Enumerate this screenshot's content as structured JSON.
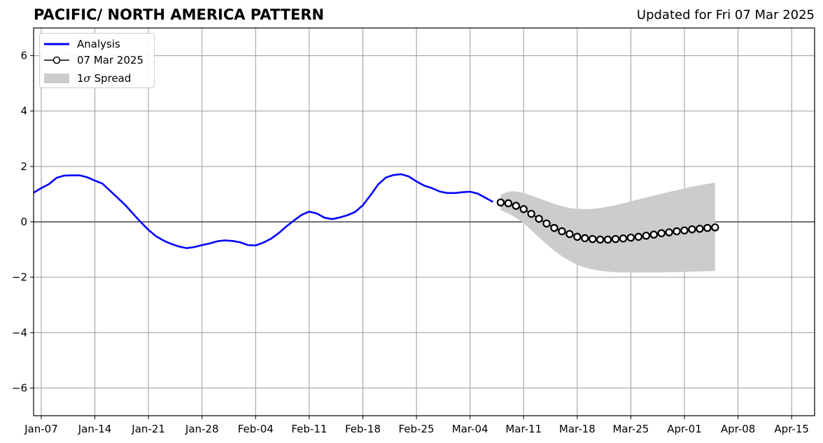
{
  "title": "PACIFIC/ NORTH AMERICA PATTERN",
  "subtitle": "Updated for Fri 07 Mar 2025",
  "colors": {
    "analysis": "#0000ff",
    "forecast": "#000000",
    "spread": "#cccccc",
    "grid": "#999999"
  },
  "legend": {
    "analysis": "Analysis",
    "forecast": "07 Mar 2025",
    "spread_prefix": "1",
    "spread_sigma": "σ",
    "spread_suffix": " Spread"
  },
  "chart_data": {
    "type": "line",
    "title": "PACIFIC/ NORTH AMERICA PATTERN",
    "subtitle": "Updated for Fri 07 Mar 2025",
    "xlabel": "",
    "ylabel": "",
    "xlim": [
      "2025-01-06",
      "2025-04-18"
    ],
    "ylim": [
      -7,
      7
    ],
    "grid": true,
    "legend_position": "top-left",
    "x_ticks": [
      "Jan-07",
      "Jan-14",
      "Jan-21",
      "Jan-28",
      "Feb-04",
      "Feb-11",
      "Feb-18",
      "Feb-25",
      "Mar-04",
      "Mar-11",
      "Mar-18",
      "Mar-25",
      "Apr-01",
      "Apr-08",
      "Apr-15"
    ],
    "x_tick_dates": [
      "2025-01-07",
      "2025-01-14",
      "2025-01-21",
      "2025-01-28",
      "2025-02-04",
      "2025-02-11",
      "2025-02-18",
      "2025-02-25",
      "2025-03-04",
      "2025-03-11",
      "2025-03-18",
      "2025-03-25",
      "2025-04-01",
      "2025-04-08",
      "2025-04-15"
    ],
    "y_ticks": [
      "6",
      "4",
      "2",
      "0",
      "−2",
      "−4",
      "−6"
    ],
    "y_tick_values": [
      6,
      4,
      2,
      0,
      -2,
      -4,
      -6
    ],
    "series": [
      {
        "name": "Analysis",
        "x": [
          "2025-01-06",
          "2025-01-07",
          "2025-01-08",
          "2025-01-09",
          "2025-01-10",
          "2025-01-11",
          "2025-01-12",
          "2025-01-13",
          "2025-01-14",
          "2025-01-15",
          "2025-01-16",
          "2025-01-17",
          "2025-01-18",
          "2025-01-19",
          "2025-01-20",
          "2025-01-21",
          "2025-01-22",
          "2025-01-23",
          "2025-01-24",
          "2025-01-25",
          "2025-01-26",
          "2025-01-27",
          "2025-01-28",
          "2025-01-29",
          "2025-01-30",
          "2025-01-31",
          "2025-02-01",
          "2025-02-02",
          "2025-02-03",
          "2025-02-04",
          "2025-02-05",
          "2025-02-06",
          "2025-02-07",
          "2025-02-08",
          "2025-02-09",
          "2025-02-10",
          "2025-02-11",
          "2025-02-12",
          "2025-02-13",
          "2025-02-14",
          "2025-02-15",
          "2025-02-16",
          "2025-02-17",
          "2025-02-18",
          "2025-02-19",
          "2025-02-20",
          "2025-02-21",
          "2025-02-22",
          "2025-02-23",
          "2025-02-24",
          "2025-02-25",
          "2025-02-26",
          "2025-02-27",
          "2025-02-28",
          "2025-03-01",
          "2025-03-02",
          "2025-03-03",
          "2025-03-04",
          "2025-03-05",
          "2025-03-06",
          "2025-03-07"
        ],
        "y": [
          1.05,
          1.22,
          1.36,
          1.59,
          1.67,
          1.68,
          1.68,
          1.61,
          1.49,
          1.38,
          1.12,
          0.86,
          0.6,
          0.29,
          -0.01,
          -0.29,
          -0.52,
          -0.68,
          -0.8,
          -0.89,
          -0.95,
          -0.91,
          -0.84,
          -0.78,
          -0.7,
          -0.67,
          -0.69,
          -0.74,
          -0.84,
          -0.85,
          -0.75,
          -0.61,
          -0.41,
          -0.17,
          0.05,
          0.25,
          0.37,
          0.3,
          0.15,
          0.1,
          0.16,
          0.24,
          0.36,
          0.6,
          0.96,
          1.35,
          1.6,
          1.69,
          1.72,
          1.64,
          1.46,
          1.31,
          1.22,
          1.1,
          1.04,
          1.04,
          1.07,
          1.09,
          1.02,
          0.87,
          0.72
        ]
      },
      {
        "name": "07 Mar 2025",
        "x": [
          "2025-03-08",
          "2025-03-09",
          "2025-03-10",
          "2025-03-11",
          "2025-03-12",
          "2025-03-13",
          "2025-03-14",
          "2025-03-15",
          "2025-03-16",
          "2025-03-17",
          "2025-03-18",
          "2025-03-19",
          "2025-03-20",
          "2025-03-21",
          "2025-03-22",
          "2025-03-23",
          "2025-03-24",
          "2025-03-25",
          "2025-03-26",
          "2025-03-27",
          "2025-03-28",
          "2025-03-29",
          "2025-03-30",
          "2025-03-31",
          "2025-04-01",
          "2025-04-02",
          "2025-04-03",
          "2025-04-04",
          "2025-04-05"
        ],
        "y": [
          0.7,
          0.67,
          0.58,
          0.46,
          0.29,
          0.11,
          -0.06,
          -0.22,
          -0.34,
          -0.44,
          -0.54,
          -0.59,
          -0.62,
          -0.64,
          -0.64,
          -0.62,
          -0.6,
          -0.57,
          -0.54,
          -0.5,
          -0.46,
          -0.41,
          -0.38,
          -0.34,
          -0.31,
          -0.27,
          -0.25,
          -0.22,
          -0.2
        ]
      }
    ],
    "spread": {
      "name": "1σ Spread",
      "x": [
        "2025-03-08",
        "2025-03-09",
        "2025-03-10",
        "2025-03-11",
        "2025-03-12",
        "2025-03-13",
        "2025-03-14",
        "2025-03-15",
        "2025-03-16",
        "2025-03-17",
        "2025-03-18",
        "2025-03-19",
        "2025-03-20",
        "2025-03-21",
        "2025-03-22",
        "2025-03-23",
        "2025-03-24",
        "2025-03-25",
        "2025-03-26",
        "2025-03-27",
        "2025-03-28",
        "2025-03-29",
        "2025-03-30",
        "2025-03-31",
        "2025-04-01",
        "2025-04-02",
        "2025-04-03",
        "2025-04-04",
        "2025-04-05"
      ],
      "upper": [
        0.98,
        1.1,
        1.1,
        1.04,
        0.95,
        0.85,
        0.75,
        0.65,
        0.57,
        0.5,
        0.47,
        0.46,
        0.47,
        0.5,
        0.55,
        0.6,
        0.67,
        0.74,
        0.81,
        0.88,
        0.95,
        1.01,
        1.08,
        1.14,
        1.21,
        1.27,
        1.32,
        1.37,
        1.42
      ],
      "lower": [
        0.42,
        0.3,
        0.15,
        -0.05,
        -0.3,
        -0.56,
        -0.81,
        -1.04,
        -1.24,
        -1.41,
        -1.55,
        -1.65,
        -1.72,
        -1.77,
        -1.8,
        -1.82,
        -1.83,
        -1.83,
        -1.83,
        -1.83,
        -1.83,
        -1.83,
        -1.82,
        -1.82,
        -1.81,
        -1.8,
        -1.79,
        -1.78,
        -1.78
      ]
    }
  }
}
